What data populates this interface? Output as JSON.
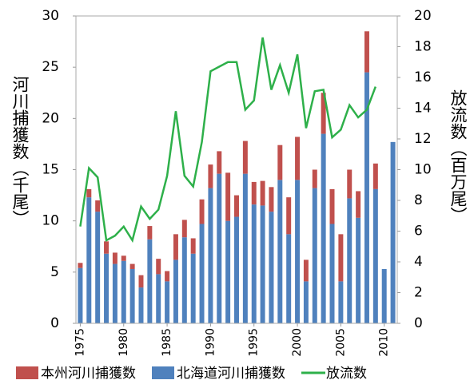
{
  "chart_data": {
    "type": "bar",
    "y_label": "河川捕獲数（千尾）",
    "y2_label": "放流数（百万尾）",
    "x": [
      1975,
      1976,
      1977,
      1978,
      1979,
      1980,
      1981,
      1982,
      1983,
      1984,
      1985,
      1986,
      1987,
      1988,
      1989,
      1990,
      1991,
      1992,
      1993,
      1994,
      1995,
      1996,
      1997,
      1998,
      1999,
      2000,
      2001,
      2002,
      2003,
      2004,
      2005,
      2006,
      2007,
      2008,
      2009,
      2010,
      2011
    ],
    "xlim": [
      1974.5,
      2011.5
    ],
    "xticks": [
      1975,
      1980,
      1985,
      1990,
      1995,
      2000,
      2005,
      2010
    ],
    "ylim": [
      0,
      30
    ],
    "yticks": [
      0,
      5,
      10,
      15,
      20,
      25,
      30
    ],
    "y2lim": [
      0,
      20
    ],
    "y2ticks": [
      0,
      2,
      4,
      6,
      8,
      10,
      12,
      14,
      16,
      18,
      20
    ],
    "series": [
      {
        "name": "本州河川捕獲数",
        "type": "bar",
        "color": "#c0504d",
        "values": [
          0.5,
          0.8,
          1.1,
          1.2,
          1.1,
          0.5,
          0.5,
          1.2,
          1.3,
          1.5,
          1.0,
          2.5,
          1.7,
          1.5,
          2.4,
          2.3,
          2.2,
          4.7,
          2.1,
          3.2,
          2.2,
          2.4,
          2.4,
          3.4,
          3.6,
          4.2,
          2.1,
          1.8,
          4.0,
          3.4,
          4.6,
          2.8,
          2.6,
          4.0,
          2.5,
          0,
          0
        ]
      },
      {
        "name": "北海道河川捕獲数",
        "type": "bar",
        "color": "#4f81bd",
        "values": [
          5.4,
          12.3,
          10.9,
          6.8,
          5.8,
          6.1,
          5.3,
          3.5,
          8.2,
          4.8,
          4.1,
          6.2,
          8.4,
          6.8,
          9.7,
          13.2,
          14.6,
          10.0,
          10.4,
          14.6,
          11.6,
          11.5,
          10.9,
          14.0,
          8.7,
          14.0,
          4.1,
          13.2,
          18.5,
          9.7,
          4.1,
          12.2,
          10.3,
          24.5,
          13.1,
          5.3,
          17.7
        ]
      },
      {
        "name": "放流数",
        "type": "line",
        "axis": "y2",
        "color": "#2eb04a",
        "values": [
          6.3,
          10.1,
          9.5,
          5.4,
          5.7,
          6.3,
          5.4,
          7.6,
          6.8,
          7.4,
          9.6,
          13.8,
          9.6,
          8.9,
          11.8,
          16.4,
          16.7,
          17.0,
          17.0,
          13.9,
          14.5,
          18.6,
          15.2,
          16.8,
          15.0,
          17.5,
          12.7,
          15.1,
          15.2,
          12.1,
          12.6,
          14.2,
          13.4,
          13.9,
          15.4,
          null,
          null
        ]
      }
    ]
  }
}
